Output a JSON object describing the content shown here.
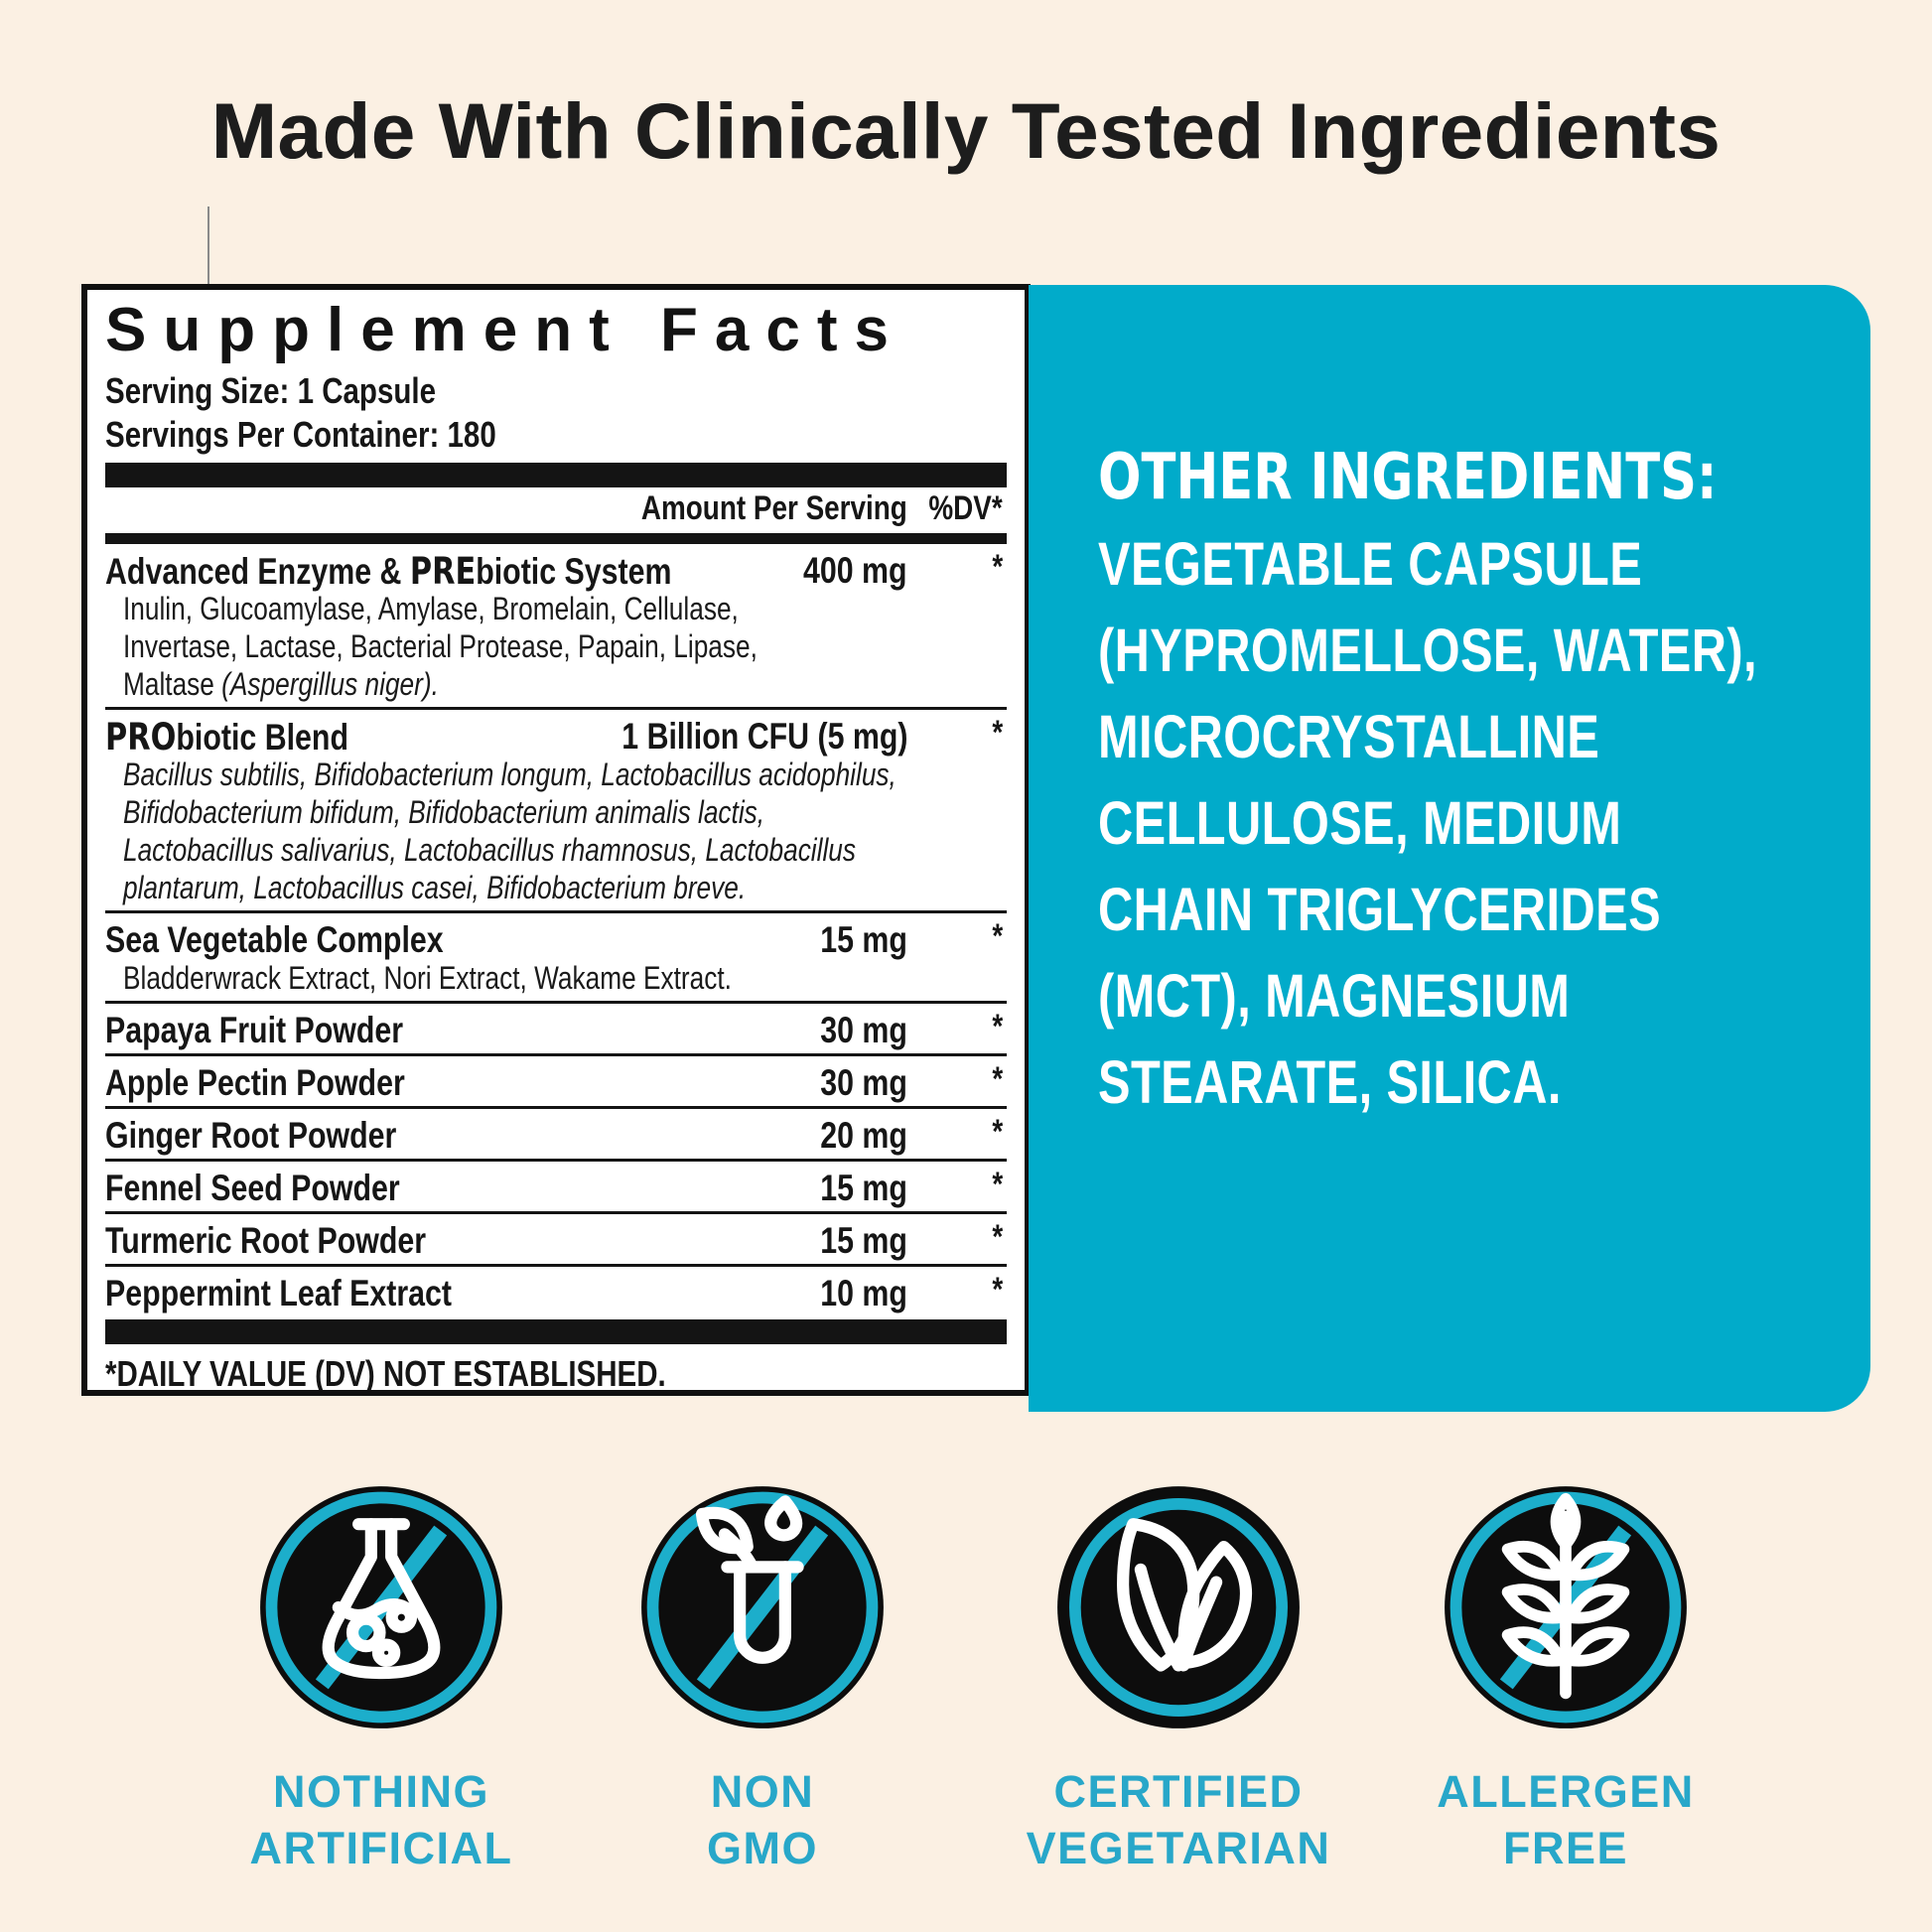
{
  "page": {
    "title": "Made With Clinically Tested Ingredients"
  },
  "supplement_facts": {
    "title": "Supplement Facts",
    "serving_size": "Serving Size: 1 Capsule",
    "servings_per_container": "Servings Per Container: 180",
    "col_amount": "Amount Per Serving",
    "col_dv": "%DV*",
    "rows": [
      {
        "name": [
          {
            "t": "Advanced Enzyme & "
          },
          {
            "t": "PRE",
            "b": true
          },
          {
            "t": "biotic System"
          }
        ],
        "amount": "400 mg",
        "dv": "*",
        "sub": [
          [
            {
              "t": "Inulin, Glucoamylase, Amylase, Bromelain, Cellulase,"
            }
          ],
          [
            {
              "t": "Invertase, Lactase, Bacterial Protease, Papain, Lipase,"
            }
          ],
          [
            {
              "t": "Maltase "
            },
            {
              "t": "(Aspergillus niger).",
              "i": true
            }
          ]
        ]
      },
      {
        "name": [
          {
            "t": "PRO",
            "b": true
          },
          {
            "t": "biotic Blend"
          }
        ],
        "amount": "1 Billion CFU (5 mg)",
        "dv": "*",
        "sub": [
          [
            {
              "t": "Bacillus subtilis, Bifidobacterium longum, Lactobacillus acidophilus,",
              "i": true
            }
          ],
          [
            {
              "t": "Bifidobacterium bifidum, Bifidobacterium animalis lactis,",
              "i": true
            }
          ],
          [
            {
              "t": "Lactobacillus salivarius, Lactobacillus rhamnosus, Lactobacillus",
              "i": true
            }
          ],
          [
            {
              "t": "plantarum, Lactobacillus casei, Bifidobacterium breve.",
              "i": true
            }
          ]
        ]
      },
      {
        "name": [
          {
            "t": "Sea Vegetable Complex"
          }
        ],
        "amount": "15 mg",
        "dv": "*",
        "sub": [
          [
            {
              "t": "Bladderwrack Extract, Nori Extract, Wakame Extract."
            }
          ]
        ]
      },
      {
        "name": [
          {
            "t": "Papaya Fruit Powder"
          }
        ],
        "amount": "30 mg",
        "dv": "*"
      },
      {
        "name": [
          {
            "t": "Apple Pectin Powder"
          }
        ],
        "amount": "30 mg",
        "dv": "*"
      },
      {
        "name": [
          {
            "t": "Ginger Root Powder"
          }
        ],
        "amount": "20 mg",
        "dv": "*"
      },
      {
        "name": [
          {
            "t": "Fennel Seed Powder"
          }
        ],
        "amount": "15 mg",
        "dv": "*"
      },
      {
        "name": [
          {
            "t": "Turmeric Root Powder"
          }
        ],
        "amount": "15 mg",
        "dv": "*"
      },
      {
        "name": [
          {
            "t": "Peppermint Leaf Extract"
          }
        ],
        "amount": "10 mg",
        "dv": "*"
      }
    ],
    "footnote": "*DAILY VALUE (DV) NOT ESTABLISHED."
  },
  "other_ingredients": {
    "heading": "OTHER INGREDIENTS:",
    "lines": [
      "VEGETABLE CAPSULE",
      "(HYPROMELLOSE, WATER),",
      "MICROCRYSTALLINE",
      "CELLULOSE, MEDIUM",
      "CHAIN TRIGLYCERIDES",
      "(MCT), MAGNESIUM",
      "STEARATE, SILICA."
    ]
  },
  "badges": [
    {
      "icon": "no-artificial-flask-icon",
      "slash": true,
      "label_lines": [
        "NOTHING",
        "ARTIFICIAL"
      ]
    },
    {
      "icon": "non-gmo-testtube-icon",
      "slash": true,
      "label_lines": [
        "NON",
        "GMO"
      ]
    },
    {
      "icon": "vegetarian-leaves-icon",
      "slash": false,
      "label_lines": [
        "CERTIFIED",
        "VEGETARIAN"
      ]
    },
    {
      "icon": "allergen-free-wheat-icon",
      "slash": true,
      "label_lines": [
        "ALLERGEN",
        "FREE"
      ]
    }
  ],
  "colors": {
    "background": "#FBF0E3",
    "panel_teal": "#01ABCA",
    "label_teal": "#28A7C9",
    "ink": "#141414",
    "white": "#FFFFFF"
  }
}
